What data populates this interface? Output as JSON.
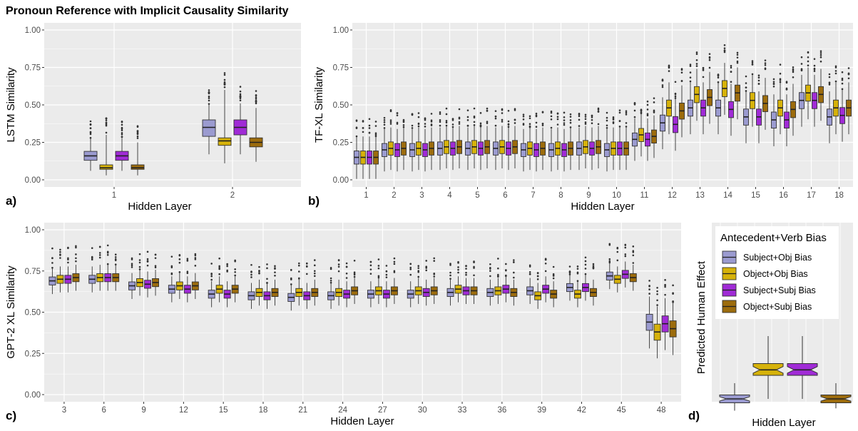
{
  "title": "Pronoun Reference with Implicit Causality Similarity",
  "colors": {
    "Subject+Obj Bias": "#9b9bd0",
    "Object+Obj Bias": "#d6b20a",
    "Subject+Subj Bias": "#a02bd6",
    "Object+Subj Bias": "#9c6c0d",
    "panel_bg": "#ebebeb",
    "grid": "#ffffff"
  },
  "legend": {
    "title": "Antecedent+Verb Bias",
    "items": [
      "Subject+Obj Bias",
      "Object+Obj Bias",
      "Subject+Subj Bias",
      "Object+Subj Bias"
    ]
  },
  "chart_data": [
    {
      "panel": "a)",
      "type": "boxplot",
      "xlabel": "Hidden Layer",
      "ylabel": "LSTM Similarity",
      "ylim": [
        0,
        1
      ],
      "yticks": [
        "0.00",
        "0.25",
        "0.50",
        "0.75",
        "1.00"
      ],
      "categories": [
        "1",
        "2"
      ],
      "series": [
        {
          "name": "Subject+Obj Bias",
          "boxes": [
            [
              0.06,
              0.13,
              0.16,
              0.19,
              0.28
            ],
            [
              0.17,
              0.29,
              0.35,
              0.4,
              0.5
            ]
          ]
        },
        {
          "name": "Object+Obj Bias",
          "boxes": [
            [
              0.03,
              0.07,
              0.08,
              0.1,
              0.3
            ],
            [
              0.11,
              0.23,
              0.26,
              0.28,
              0.6
            ]
          ]
        },
        {
          "name": "Subject+Subj Bias",
          "boxes": [
            [
              0.06,
              0.13,
              0.16,
              0.19,
              0.28
            ],
            [
              0.17,
              0.3,
              0.35,
              0.4,
              0.51
            ]
          ]
        },
        {
          "name": "Object+Subj Bias",
          "boxes": [
            [
              0.03,
              0.07,
              0.08,
              0.1,
              0.25
            ],
            [
              0.12,
              0.22,
              0.25,
              0.28,
              0.48
            ]
          ]
        }
      ]
    },
    {
      "panel": "b)",
      "type": "boxplot",
      "xlabel": "Hidden Layer",
      "ylabel": "TF-XL Similarity",
      "ylim": [
        0,
        1
      ],
      "yticks": [
        "0.00",
        "0.25",
        "0.50",
        "0.75",
        "1.00"
      ],
      "categories": [
        "1",
        "2",
        "3",
        "4",
        "5",
        "6",
        "7",
        "8",
        "9",
        "10",
        "11",
        "12",
        "13",
        "14",
        "15",
        "16",
        "17",
        "18"
      ],
      "series": [
        {
          "name": "Subject+Obj Bias",
          "medians": [
            0.15,
            0.2,
            0.2,
            0.21,
            0.21,
            0.21,
            0.2,
            0.2,
            0.21,
            0.2,
            0.27,
            0.38,
            0.48,
            0.48,
            0.42,
            0.4,
            0.53,
            0.42
          ]
        },
        {
          "name": "Object+Obj Bias",
          "medians": [
            0.15,
            0.21,
            0.21,
            0.22,
            0.22,
            0.22,
            0.21,
            0.21,
            0.22,
            0.21,
            0.3,
            0.48,
            0.57,
            0.61,
            0.53,
            0.48,
            0.58,
            0.48
          ]
        },
        {
          "name": "Subject+Subj Bias",
          "medians": [
            0.15,
            0.2,
            0.2,
            0.21,
            0.21,
            0.21,
            0.2,
            0.2,
            0.21,
            0.21,
            0.27,
            0.37,
            0.48,
            0.47,
            0.42,
            0.4,
            0.53,
            0.43
          ]
        },
        {
          "name": "Object+Subj Bias",
          "medians": [
            0.15,
            0.21,
            0.21,
            0.22,
            0.22,
            0.22,
            0.21,
            0.21,
            0.22,
            0.21,
            0.29,
            0.46,
            0.55,
            0.58,
            0.51,
            0.47,
            0.57,
            0.48
          ]
        }
      ]
    },
    {
      "panel": "c)",
      "type": "boxplot",
      "xlabel": "Hidden Layer",
      "ylabel": "GPT-2 XL Similarity",
      "ylim": [
        0,
        1
      ],
      "yticks": [
        "0.00",
        "0.25",
        "0.50",
        "0.75",
        "1.00"
      ],
      "categories": [
        "3",
        "6",
        "9",
        "12",
        "15",
        "18",
        "21",
        "24",
        "27",
        "30",
        "33",
        "36",
        "39",
        "42",
        "45",
        "48"
      ],
      "series": [
        {
          "name": "Subject+Obj Bias",
          "medians": [
            0.69,
            0.7,
            0.66,
            0.64,
            0.61,
            0.6,
            0.59,
            0.6,
            0.61,
            0.61,
            0.62,
            0.62,
            0.63,
            0.65,
            0.72,
            0.44
          ]
        },
        {
          "name": "Object+Obj Bias",
          "medians": [
            0.7,
            0.71,
            0.68,
            0.66,
            0.64,
            0.62,
            0.62,
            0.62,
            0.63,
            0.63,
            0.64,
            0.63,
            0.6,
            0.61,
            0.7,
            0.38
          ]
        },
        {
          "name": "Subject+Subj Bias",
          "medians": [
            0.7,
            0.71,
            0.67,
            0.64,
            0.61,
            0.6,
            0.6,
            0.61,
            0.61,
            0.62,
            0.63,
            0.64,
            0.64,
            0.65,
            0.73,
            0.43
          ]
        },
        {
          "name": "Object+Subj Bias",
          "medians": [
            0.71,
            0.71,
            0.68,
            0.66,
            0.64,
            0.62,
            0.62,
            0.63,
            0.63,
            0.63,
            0.63,
            0.62,
            0.61,
            0.62,
            0.71,
            0.4
          ]
        }
      ]
    },
    {
      "panel": "d)",
      "type": "boxplot",
      "xlabel": "Hidden Layer",
      "ylabel": "Predicted Human Effect",
      "notched": true,
      "series": [
        {
          "name": "Subject+Obj Bias",
          "box": [
            -0.05,
            0.05,
            0.1,
            0.15,
            0.3
          ]
        },
        {
          "name": "Object+Obj Bias",
          "box": [
            0.1,
            0.4,
            0.47,
            0.55,
            0.9
          ]
        },
        {
          "name": "Subject+Subj Bias",
          "box": [
            0.1,
            0.4,
            0.47,
            0.55,
            0.9
          ]
        },
        {
          "name": "Object+Subj Bias",
          "box": [
            -0.02,
            0.05,
            0.1,
            0.15,
            0.3
          ]
        }
      ]
    }
  ]
}
